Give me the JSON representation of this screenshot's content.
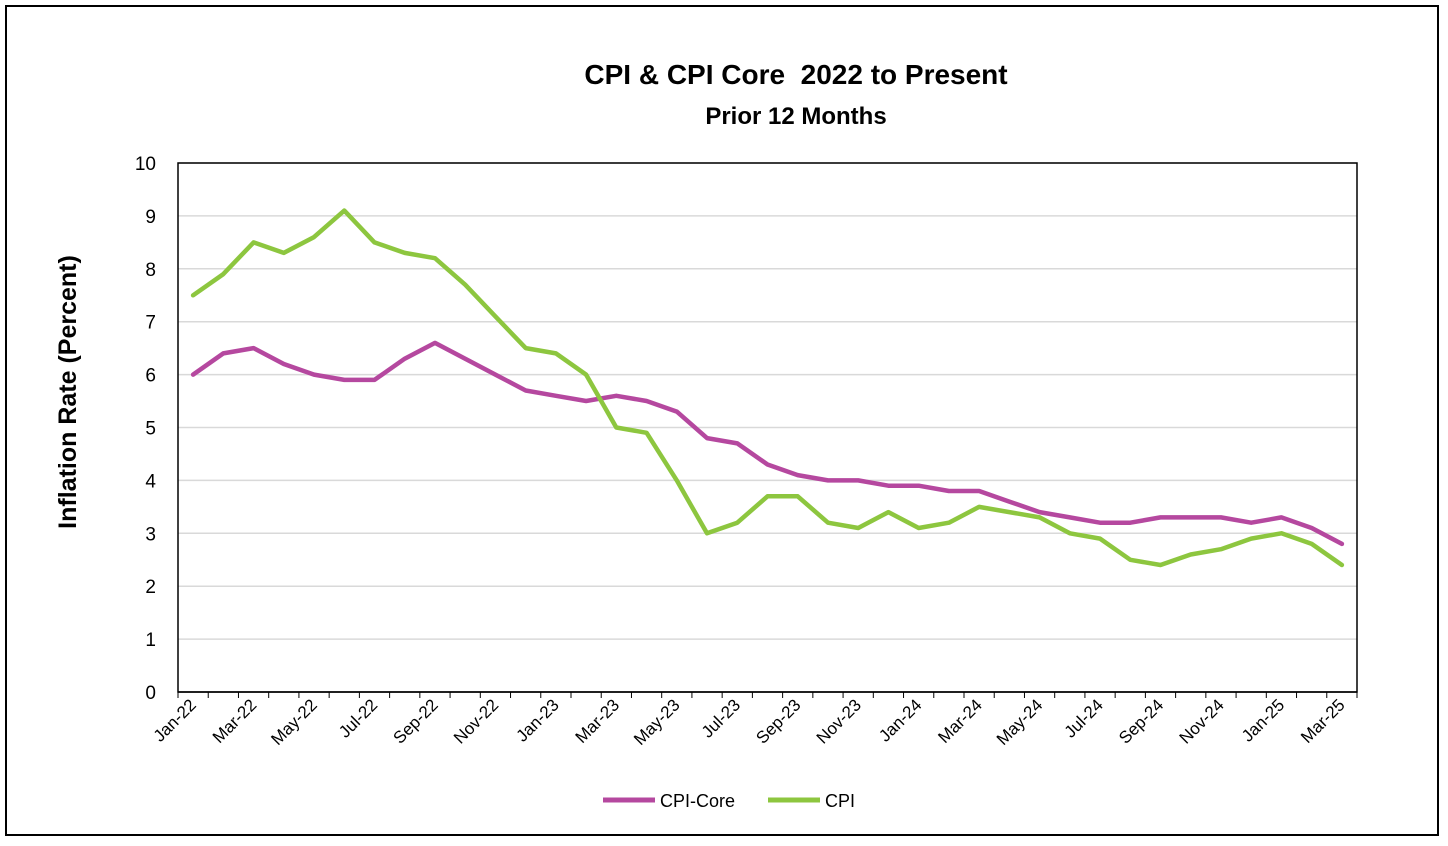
{
  "chart_data": {
    "type": "line",
    "title": "CPI & CPI Core  2022 to Present",
    "subtitle": "Prior 12 Months",
    "xlabel": "",
    "ylabel": "Inflation Rate (Percent)",
    "ylim": [
      0,
      10
    ],
    "yticks": [
      "0",
      "1",
      "2",
      "3",
      "4",
      "5",
      "6",
      "7",
      "8",
      "9",
      "10"
    ],
    "grid": true,
    "legend_position": "bottom",
    "x": [
      "Jan-22",
      "Feb-22",
      "Mar-22",
      "Apr-22",
      "May-22",
      "Jun-22",
      "Jul-22",
      "Aug-22",
      "Sep-22",
      "Oct-22",
      "Nov-22",
      "Dec-22",
      "Jan-23",
      "Feb-23",
      "Mar-23",
      "Apr-23",
      "May-23",
      "Jun-23",
      "Jul-23",
      "Aug-23",
      "Sep-23",
      "Oct-23",
      "Nov-23",
      "Dec-23",
      "Jan-24",
      "Feb-24",
      "Mar-24",
      "Apr-24",
      "May-24",
      "Jun-24",
      "Jul-24",
      "Aug-24",
      "Sep-24",
      "Oct-24",
      "Nov-24",
      "Dec-24",
      "Jan-25",
      "Feb-25",
      "Mar-25"
    ],
    "xtick_labels": [
      "Jan-22",
      "Mar-22",
      "May-22",
      "Jul-22",
      "Sep-22",
      "Nov-22",
      "Jan-23",
      "Mar-23",
      "May-23",
      "Jul-23",
      "Sep-23",
      "Nov-23",
      "Jan-24",
      "Mar-24",
      "May-24",
      "Jul-24",
      "Sep-24",
      "Nov-24",
      "Jan-25",
      "Mar-25"
    ],
    "series": [
      {
        "name": "CPI-Core",
        "color": "#b5489f",
        "values": [
          6.0,
          6.4,
          6.5,
          6.2,
          6.0,
          5.9,
          5.9,
          6.3,
          6.6,
          6.3,
          6.0,
          5.7,
          5.6,
          5.5,
          5.6,
          5.5,
          5.3,
          4.8,
          4.7,
          4.3,
          4.1,
          4.0,
          4.0,
          3.9,
          3.9,
          3.8,
          3.8,
          3.6,
          3.4,
          3.3,
          3.2,
          3.2,
          3.3,
          3.3,
          3.3,
          3.2,
          3.3,
          3.1,
          2.8
        ]
      },
      {
        "name": "CPI",
        "color": "#8dc63f",
        "values": [
          7.5,
          7.9,
          8.5,
          8.3,
          8.6,
          9.1,
          8.5,
          8.3,
          8.2,
          7.7,
          7.1,
          6.5,
          6.4,
          6.0,
          5.0,
          4.9,
          4.0,
          3.0,
          3.2,
          3.7,
          3.7,
          3.2,
          3.1,
          3.4,
          3.1,
          3.2,
          3.5,
          3.4,
          3.3,
          3.0,
          2.9,
          2.5,
          2.4,
          2.6,
          2.7,
          2.9,
          3.0,
          2.8,
          2.4
        ]
      }
    ]
  }
}
